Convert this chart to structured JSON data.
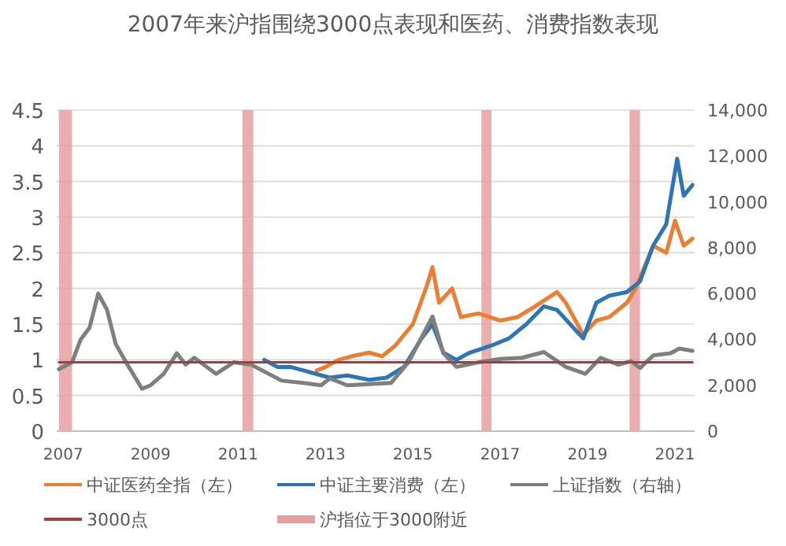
{
  "chart_data": {
    "type": "line",
    "title": "2007年来沪指围绕3000点表现和医药、消费指数表现",
    "xlim": [
      2006.85,
      2021.45
    ],
    "xticks": [
      2007,
      2009,
      2011,
      2013,
      2015,
      2017,
      2019,
      2021
    ],
    "ylim": [
      0,
      4.5
    ],
    "yticks": [
      0,
      0.5,
      1,
      1.5,
      2,
      2.5,
      3,
      3.5,
      4,
      4.5
    ],
    "y2lim": [
      0,
      14000
    ],
    "y2ticks": [
      0,
      {
        "value": 2000,
        "label": "2,000"
      },
      {
        "value": 4000,
        "label": "4,000"
      },
      {
        "value": 6000,
        "label": "6,000"
      },
      {
        "value": 8000,
        "label": "8,000"
      },
      {
        "value": 10000,
        "label": "10,000"
      },
      {
        "value": 12000,
        "label": "12,000"
      },
      {
        "value": 14000,
        "label": "14,000"
      }
    ],
    "grid": "y",
    "legend": "bottom",
    "line_style": "solid",
    "marker": "none",
    "series": [
      {
        "name": "中证医药全指（左）",
        "color": "#ed7d31",
        "x": [
          2012.8,
          2013.0,
          2013.3,
          2013.6,
          2014.0,
          2014.3,
          2014.6,
          2015.0,
          2015.3,
          2015.45,
          2015.6,
          2015.9,
          2016.1,
          2016.5,
          2017.0,
          2017.4,
          2017.8,
          2018.3,
          2018.5,
          2018.9,
          2019.2,
          2019.5,
          2019.9,
          2020.1,
          2020.5,
          2020.8,
          2021.0,
          2021.2,
          2021.4
        ],
        "values": [
          0.85,
          0.9,
          1.0,
          1.05,
          1.1,
          1.05,
          1.2,
          1.5,
          2.0,
          2.3,
          1.8,
          2.0,
          1.6,
          1.65,
          1.55,
          1.6,
          1.75,
          1.95,
          1.8,
          1.35,
          1.55,
          1.6,
          1.8,
          2.0,
          2.6,
          2.5,
          2.95,
          2.6,
          2.7
        ]
      },
      {
        "name": "中证主要消费（左）",
        "color": "#2e75b6",
        "x": [
          2011.6,
          2011.9,
          2012.2,
          2012.5,
          2012.8,
          2013.1,
          2013.5,
          2014.0,
          2014.4,
          2014.8,
          2015.2,
          2015.45,
          2015.7,
          2016.0,
          2016.3,
          2016.8,
          2017.2,
          2017.6,
          2018.0,
          2018.3,
          2018.6,
          2018.9,
          2019.2,
          2019.5,
          2019.9,
          2020.2,
          2020.5,
          2020.8,
          2021.05,
          2021.2,
          2021.4
        ],
        "values": [
          1.0,
          0.9,
          0.9,
          0.85,
          0.8,
          0.75,
          0.78,
          0.72,
          0.75,
          0.9,
          1.3,
          1.5,
          1.1,
          1.0,
          1.1,
          1.2,
          1.3,
          1.5,
          1.75,
          1.7,
          1.5,
          1.3,
          1.8,
          1.9,
          1.95,
          2.1,
          2.6,
          2.9,
          3.82,
          3.3,
          3.45
        ]
      },
      {
        "name": "上证指数（右轴）",
        "color": "#7f7f7f",
        "axis": "y2",
        "x": [
          2006.9,
          2007.2,
          2007.4,
          2007.6,
          2007.8,
          2008.0,
          2008.2,
          2008.5,
          2008.8,
          2009.0,
          2009.3,
          2009.6,
          2009.8,
          2010.0,
          2010.5,
          2010.9,
          2011.3,
          2011.7,
          2012.0,
          2012.5,
          2012.9,
          2013.1,
          2013.5,
          2014.0,
          2014.5,
          2014.9,
          2015.45,
          2015.7,
          2016.0,
          2016.5,
          2017.0,
          2017.5,
          2018.0,
          2018.5,
          2018.95,
          2019.3,
          2019.7,
          2020.0,
          2020.2,
          2020.5,
          2020.9,
          2021.1,
          2021.4
        ],
        "values": [
          2700,
          3000,
          4000,
          4500,
          6000,
          5300,
          3800,
          2800,
          1850,
          2000,
          2500,
          3400,
          2900,
          3200,
          2500,
          3000,
          2900,
          2500,
          2200,
          2100,
          2000,
          2300,
          2000,
          2050,
          2100,
          3000,
          5000,
          3400,
          2800,
          3000,
          3150,
          3200,
          3450,
          2800,
          2500,
          3200,
          2900,
          3050,
          2750,
          3300,
          3400,
          3600,
          3500
        ]
      },
      {
        "name": "3000点",
        "color": "#a0403c",
        "axis": "y2",
        "x": [
          2006.9,
          2021.4
        ],
        "values": [
          3000,
          3000
        ]
      }
    ],
    "bands": [
      {
        "axis": "x",
        "from": 2006.9,
        "to": 2007.2,
        "label": "沪指位于3000附近",
        "color": "#e6a0a0"
      },
      {
        "axis": "x",
        "from": 2011.1,
        "to": 2011.35,
        "color": "#e6a0a0"
      },
      {
        "axis": "x",
        "from": 2016.57,
        "to": 2016.8,
        "color": "#e6a0a0"
      },
      {
        "axis": "x",
        "from": 2019.96,
        "to": 2020.2,
        "color": "#e6a0a0"
      }
    ]
  }
}
